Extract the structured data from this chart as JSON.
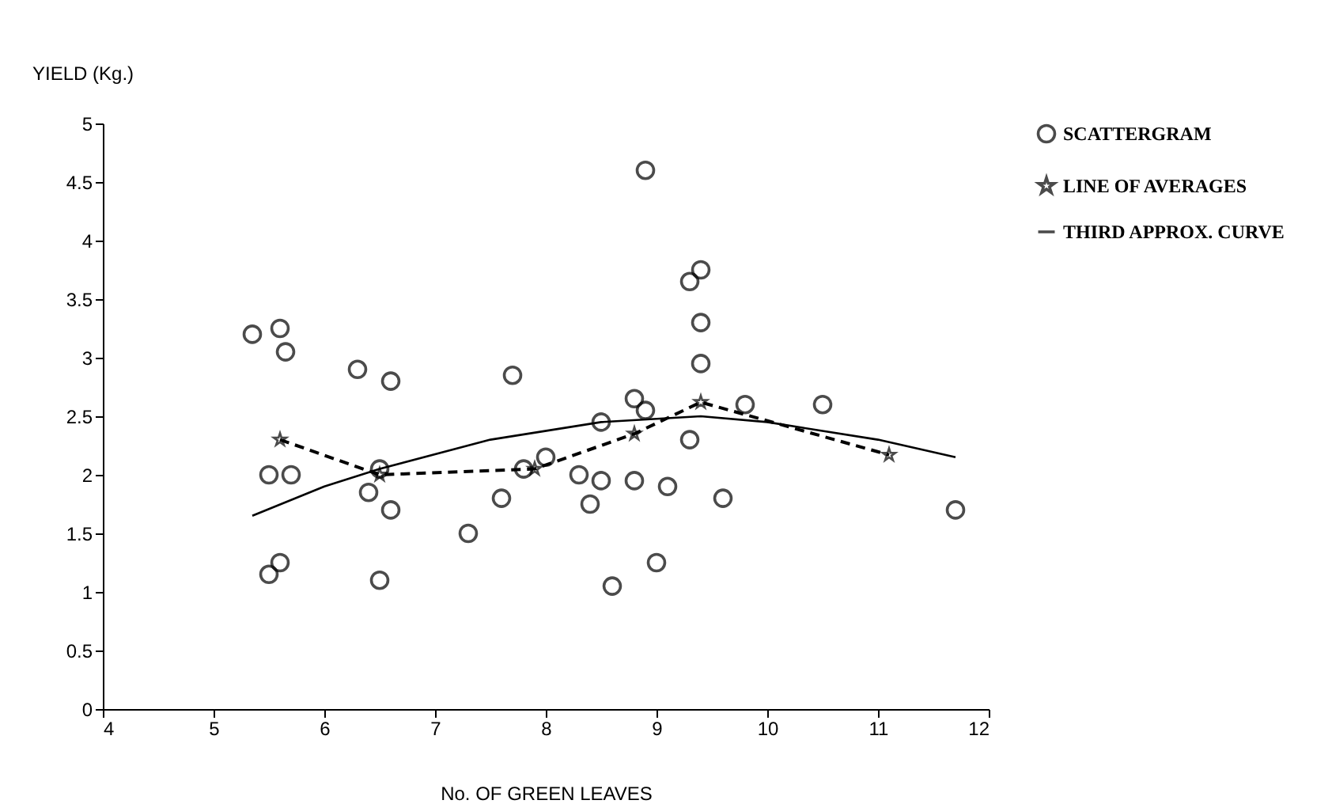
{
  "chart_data": {
    "type": "scatter",
    "xlabel": "No. OF GREEN LEAVES",
    "ylabel": "YIELD (Kg.)",
    "xlim": [
      4,
      12
    ],
    "xticks": [
      4,
      5,
      6,
      7,
      8,
      9,
      10,
      11,
      12
    ],
    "ylim": [
      0,
      5
    ],
    "yticks": [
      0,
      0.5,
      1,
      1.5,
      2,
      2.5,
      3,
      3.5,
      4,
      4.5,
      5
    ],
    "grid": false,
    "legend": "right",
    "series": [
      {
        "name": "SCATTERGRAM",
        "type": "scatter",
        "marker": "circle",
        "color": "#000000",
        "x": [
          5.35,
          5.6,
          5.65,
          5.5,
          5.7,
          5.5,
          5.6,
          6.3,
          6.6,
          6.4,
          6.5,
          6.6,
          6.5,
          7.3,
          7.6,
          7.7,
          7.8,
          8.0,
          8.3,
          8.4,
          8.5,
          8.5,
          8.6,
          8.8,
          8.9,
          8.8,
          8.9,
          9.0,
          9.1,
          9.3,
          9.4,
          9.4,
          9.4,
          9.3,
          9.6,
          9.8,
          10.5,
          11.7
        ],
        "values": [
          3.2,
          3.25,
          3.05,
          2.0,
          2.0,
          1.15,
          1.25,
          2.9,
          2.8,
          1.85,
          2.05,
          1.7,
          1.1,
          1.5,
          1.8,
          2.85,
          2.05,
          2.15,
          2.0,
          1.75,
          2.45,
          1.95,
          1.05,
          2.65,
          2.55,
          1.95,
          4.6,
          1.25,
          1.9,
          3.65,
          3.75,
          3.3,
          2.95,
          2.3,
          1.8,
          2.6,
          2.6,
          1.7
        ]
      },
      {
        "name": "LINE OF AVERAGES",
        "type": "line",
        "marker": "star",
        "line_style": "dashed",
        "color": "#000000",
        "x": [
          5.6,
          6.5,
          7.9,
          8.8,
          9.4,
          11.1
        ],
        "values": [
          2.3,
          2.0,
          2.05,
          2.35,
          2.62,
          2.17
        ]
      },
      {
        "name": "THIRD APPROX. CURVE",
        "type": "line",
        "marker": "none",
        "line_style": "solid",
        "color": "#000000",
        "x": [
          5.35,
          6.0,
          6.5,
          7.5,
          8.5,
          9.4,
          10.0,
          11.0,
          11.7
        ],
        "values": [
          1.65,
          1.9,
          2.05,
          2.3,
          2.45,
          2.5,
          2.45,
          2.3,
          2.15
        ]
      }
    ]
  }
}
